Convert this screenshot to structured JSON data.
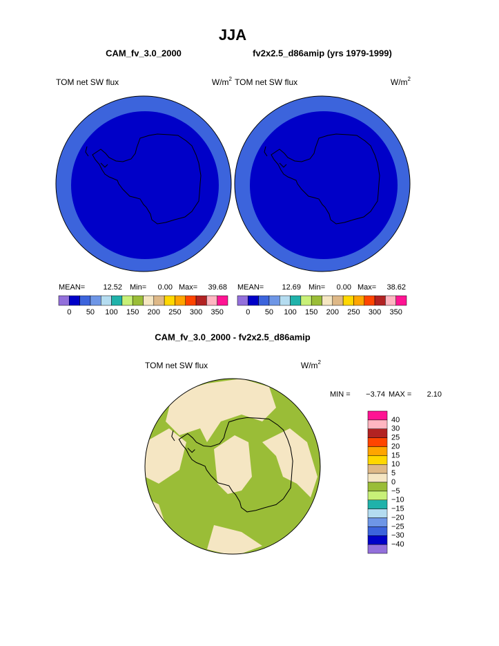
{
  "title": "JJA",
  "panels": [
    {
      "case": "CAM_fv_3.0_2000",
      "variable": "TOM net SW flux",
      "units": "W/m",
      "units_exp": "2",
      "stats": {
        "mean_label": "MEAN=",
        "mean": "12.52",
        "min_label": "Min=",
        "min": "0.00",
        "max_label": "Max=",
        "max": "39.68"
      }
    },
    {
      "case": "fv2x2.5_d86amip (yrs 1979-1999)",
      "variable": "TOM net SW flux",
      "units": "W/m",
      "units_exp": "2",
      "stats": {
        "mean_label": "MEAN=",
        "mean": "12.69",
        "min_label": "Min=",
        "min": "0.00",
        "max_label": "Max=",
        "max": "38.62"
      }
    }
  ],
  "colorbar": {
    "colors": [
      "#9370db",
      "#0000c8",
      "#3c64dc",
      "#6e96e6",
      "#b4dcf0",
      "#20b2aa",
      "#c8f078",
      "#9abd37",
      "#f5e6c3",
      "#deb887",
      "#ffd700",
      "#ffa500",
      "#ff4500",
      "#b22222",
      "#ffb6c1",
      "#ff1493"
    ],
    "labels": [
      "0",
      "50",
      "100",
      "150",
      "200",
      "250",
      "300",
      "350"
    ]
  },
  "difference": {
    "title": "CAM_fv_3.0_2000 - fv2x2.5_d86amip",
    "variable": "TOM net SW flux",
    "units": "W/m",
    "units_exp": "2",
    "min_label": "MIN =",
    "min": "−3.74",
    "max_label": "MAX =",
    "max": "2.10",
    "colors": [
      "#ff1493",
      "#ffb6c1",
      "#b22222",
      "#ff4500",
      "#ffa500",
      "#ffd700",
      "#deb887",
      "#f5e6c3",
      "#9abd37",
      "#c8f078",
      "#20b2aa",
      "#b4dcf0",
      "#6e96e6",
      "#3c64dc",
      "#0000c8",
      "#9370db"
    ],
    "labels": [
      "40",
      "30",
      "25",
      "20",
      "15",
      "10",
      "5",
      "0",
      "−5",
      "−10",
      "−15",
      "−20",
      "−25",
      "−30",
      "−40"
    ]
  }
}
